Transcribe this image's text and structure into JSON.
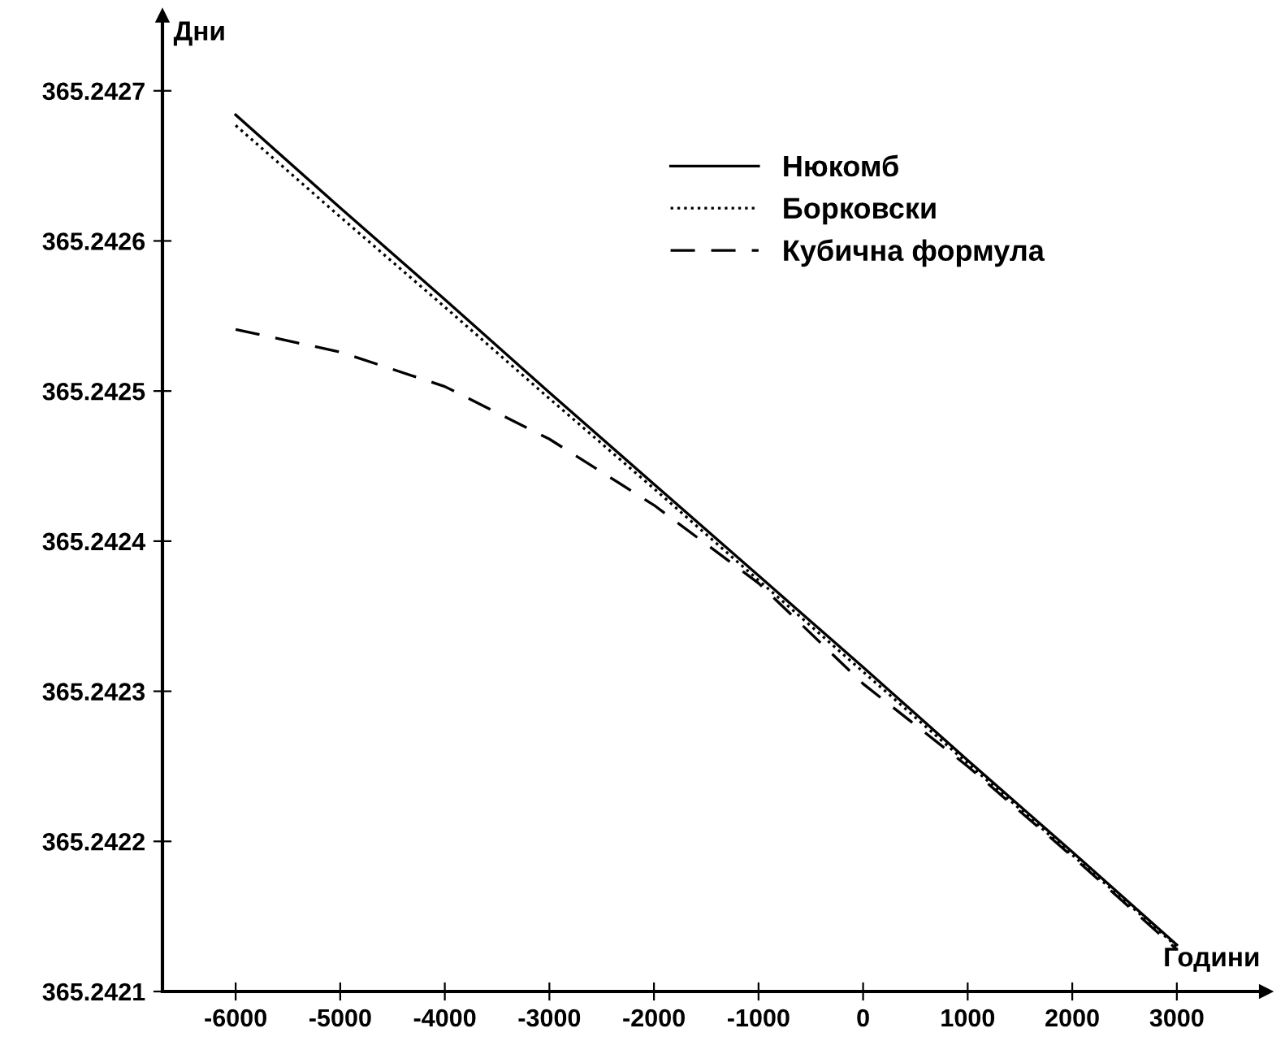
{
  "chart_data": {
    "type": "line",
    "xlabel": "Години",
    "ylabel": "Дни",
    "x": [
      -6000,
      -5000,
      -4000,
      -3000,
      -2000,
      -1000,
      0,
      1000,
      2000,
      3000
    ],
    "series": [
      {
        "name": "Нюкомб",
        "color": "#000000",
        "line_style": "solid",
        "values": [
          365.242684,
          365.242622,
          365.242561,
          365.242499,
          365.242438,
          365.242377,
          365.242316,
          365.242254,
          365.242193,
          365.242131
        ]
      },
      {
        "name": "Борковски",
        "color": "#000000",
        "line_style": "dotted",
        "values": [
          365.242677,
          365.242616,
          365.242556,
          365.242495,
          365.242435,
          365.242374,
          365.242313,
          365.242252,
          365.242191,
          365.24213
        ]
      },
      {
        "name": "Кубична формула",
        "color": "#000000",
        "line_style": "dashed",
        "values": [
          365.242541,
          365.242526,
          365.242503,
          365.242468,
          365.242424,
          365.242372,
          365.242305,
          365.24225,
          365.24219,
          365.242128
        ]
      }
    ],
    "xlim": [
      -6700,
      3850
    ],
    "ylim": [
      365.2421,
      365.24275
    ],
    "xticks": [
      -6000,
      -5000,
      -4000,
      -3000,
      -2000,
      -1000,
      0,
      1000,
      2000,
      3000
    ],
    "yticks": [
      365.2421,
      365.2422,
      365.2423,
      365.2424,
      365.2425,
      365.2426,
      365.2427
    ],
    "grid": false,
    "legend": "top",
    "marker": "none"
  }
}
